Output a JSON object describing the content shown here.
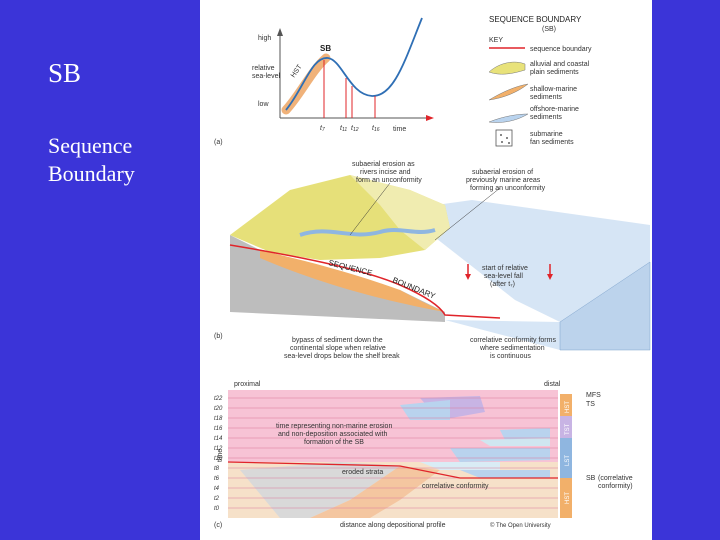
{
  "slide": {
    "title": "SB",
    "subtitle_line1": "Sequence",
    "subtitle_line2": "Boundary"
  },
  "panel_a": {
    "label": "(a)",
    "y_high": "high",
    "y_mid1": "relative",
    "y_mid2": "sea-level",
    "y_low": "low",
    "hst": "HST",
    "sb": "SB",
    "x_axis": "time",
    "ticks": [
      "t",
      "t",
      "t",
      "t"
    ],
    "tick_subs": [
      "7",
      "11",
      "12",
      "16"
    ]
  },
  "key": {
    "heading1": "SEQUENCE BOUNDARY",
    "heading2": "(SB)",
    "title": "KEY",
    "items": [
      {
        "line1": "sequence boundary",
        "line2": ""
      },
      {
        "line1": "alluvial and coastal",
        "line2": "plain sediments"
      },
      {
        "line1": "shallow-marine",
        "line2": "sediments"
      },
      {
        "line1": "offshore-marine",
        "line2": "sediments"
      },
      {
        "line1": "submarine",
        "line2": "fan sediments"
      }
    ]
  },
  "panel_b": {
    "label": "(b)",
    "callout1": [
      "subaerial erosion as",
      "rivers incise and",
      "form an unconformity"
    ],
    "callout2": [
      "subaerial erosion of",
      "previously marine areas",
      "forming an unconformity"
    ],
    "callout3": [
      "start of relative",
      "sea-level fall",
      "(after t₇)"
    ],
    "seq_text": "SEQUENCE",
    "bound_text": "BOUNDARY",
    "caption_left": [
      "bypass of sediment down the",
      "continental slope when relative",
      "sea-level drops below the shelf break"
    ],
    "caption_right": [
      "correlative conformity forms",
      "where sedimentation",
      "is continuous"
    ]
  },
  "panel_c": {
    "label": "(c)",
    "proximal": "proximal",
    "distal": "distal",
    "y_axis": "time",
    "t_labels": [
      "t22",
      "t20",
      "t18",
      "t16",
      "t14",
      "t12",
      "t10",
      "t8",
      "t6",
      "t4",
      "t2",
      "t0"
    ],
    "erosion_note": [
      "time representing non-marine erosion",
      "and non-deposition associated with",
      "formation of the SB"
    ],
    "eroded": "eroded strata",
    "correlative": "correlative conformity",
    "x_axis": "distance along depositional profile",
    "copyright": "© The Open University",
    "mfs": "MFS",
    "ts": "TS",
    "sb_label": "SB",
    "sb_note1": "(correlative",
    "sb_note2": "conformity)",
    "systems": [
      "HST",
      "TST",
      "LST",
      "HST"
    ]
  },
  "colors": {
    "background": "#3b34d8",
    "sequence_boundary": "#e0242a",
    "alluvial": "#e8e27a",
    "shallow_marine": "#f2b06a",
    "offshore": "#b9d3ee",
    "pink_band": "#f7c3d5"
  }
}
